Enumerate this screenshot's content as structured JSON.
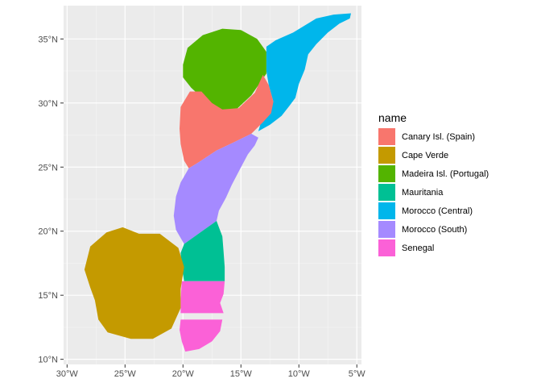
{
  "chart_data": {
    "type": "map",
    "legend": {
      "title": "name",
      "placement": "right",
      "entries": [
        {
          "key": "canary",
          "label": "Canary Isl. (Spain)",
          "color": "#F8766D"
        },
        {
          "key": "capeverde",
          "label": "Cape Verde",
          "color": "#C49A00"
        },
        {
          "key": "madeira",
          "label": "Madeira Isl. (Portugal)",
          "color": "#53B400"
        },
        {
          "key": "mauritania",
          "label": "Mauritania",
          "color": "#00C094"
        },
        {
          "key": "morocco_central",
          "label": "Morocco (Central)",
          "color": "#00B6EB"
        },
        {
          "key": "morocco_south",
          "label": "Morocco (South)",
          "color": "#A58AFF"
        },
        {
          "key": "senegal",
          "label": "Senegal",
          "color": "#FB61D7"
        }
      ]
    },
    "x_axis": {
      "range": [
        -30.3,
        -4.6
      ],
      "ticks": [
        -30,
        -25,
        -20,
        -15,
        -10,
        -5
      ],
      "tick_labels": [
        "30°W",
        "25°W",
        "20°W",
        "15°W",
        "10°W",
        "5°W"
      ]
    },
    "y_axis": {
      "range": [
        9.6,
        37.6
      ],
      "ticks": [
        10,
        15,
        20,
        25,
        30,
        35
      ],
      "tick_labels": [
        "10°N",
        "15°N",
        "20°N",
        "25°N",
        "30°N",
        "35°N"
      ]
    },
    "regions": [
      {
        "key": "madeira",
        "points": [
          [
            -20,
            33
          ],
          [
            -19.6,
            34.3
          ],
          [
            -18.3,
            35.3
          ],
          [
            -16.6,
            35.8
          ],
          [
            -15,
            35.7
          ],
          [
            -13.6,
            35
          ],
          [
            -12.8,
            34
          ],
          [
            -12.8,
            32.3
          ],
          [
            -14.1,
            30.6
          ],
          [
            -15.4,
            29.5
          ],
          [
            -17,
            29.4
          ],
          [
            -18.1,
            30.2
          ],
          [
            -19.3,
            31.2
          ],
          [
            -20,
            32
          ]
        ]
      },
      {
        "key": "morocco_central",
        "points": [
          [
            -12.8,
            34.4
          ],
          [
            -12,
            34.9
          ],
          [
            -10.5,
            35.5
          ],
          [
            -8.5,
            36.6
          ],
          [
            -7,
            36.9
          ],
          [
            -5.5,
            37
          ],
          [
            -5.6,
            36.6
          ],
          [
            -6.5,
            36.2
          ],
          [
            -7.5,
            35.5
          ],
          [
            -8.5,
            34.6
          ],
          [
            -9.2,
            33.8
          ],
          [
            -9.5,
            32.6
          ],
          [
            -10,
            31.5
          ],
          [
            -10.3,
            30.4
          ],
          [
            -10.8,
            29.8
          ],
          [
            -11.5,
            29
          ],
          [
            -12.5,
            28.3
          ],
          [
            -13.5,
            27.8
          ],
          [
            -13.2,
            28.7
          ],
          [
            -12.2,
            30.1
          ],
          [
            -12.6,
            31.4
          ],
          [
            -12.8,
            32.5
          ]
        ]
      },
      {
        "key": "canary",
        "points": [
          [
            -20.3,
            28
          ],
          [
            -20.2,
            29.7
          ],
          [
            -19.4,
            30.9
          ],
          [
            -18.4,
            30.9
          ],
          [
            -17.5,
            30
          ],
          [
            -16.6,
            29.5
          ],
          [
            -15.2,
            29.6
          ],
          [
            -13.8,
            30.8
          ],
          [
            -13.1,
            32.2
          ],
          [
            -12.6,
            31.4
          ],
          [
            -12.2,
            30.1
          ],
          [
            -12.4,
            29.2
          ],
          [
            -13.1,
            28.5
          ],
          [
            -14.1,
            27.6
          ],
          [
            -15.7,
            26.9
          ],
          [
            -17.1,
            26.3
          ],
          [
            -18.6,
            25.4
          ],
          [
            -19.5,
            24.9
          ],
          [
            -19.9,
            25.5
          ],
          [
            -20.2,
            26.8
          ]
        ]
      },
      {
        "key": "morocco_south",
        "points": [
          [
            -19.5,
            24.9
          ],
          [
            -18.6,
            25.4
          ],
          [
            -17.1,
            26.3
          ],
          [
            -15.7,
            26.9
          ],
          [
            -14.1,
            27.6
          ],
          [
            -13.5,
            27.3
          ],
          [
            -13.8,
            26.7
          ],
          [
            -14.4,
            26
          ],
          [
            -15.1,
            24.8
          ],
          [
            -15.8,
            23.6
          ],
          [
            -16.3,
            22.6
          ],
          [
            -16.9,
            21.6
          ],
          [
            -17.1,
            20.8
          ],
          [
            -19.9,
            19
          ],
          [
            -20.6,
            20.1
          ],
          [
            -20.8,
            21.2
          ],
          [
            -20.6,
            22.7
          ],
          [
            -20.2,
            23.8
          ]
        ]
      },
      {
        "key": "mauritania",
        "points": [
          [
            -19.9,
            19
          ],
          [
            -17.1,
            20.8
          ],
          [
            -16.9,
            20.3
          ],
          [
            -16.6,
            19.6
          ],
          [
            -16.5,
            18.4
          ],
          [
            -16.4,
            17.2
          ],
          [
            -16.4,
            16.1
          ],
          [
            -19.9,
            16.1
          ],
          [
            -20.1,
            17.2
          ],
          [
            -20.2,
            18.3
          ]
        ]
      },
      {
        "key": "senegal",
        "points": [
          [
            -20.1,
            16.1
          ],
          [
            -16.4,
            16.1
          ],
          [
            -16.5,
            15.1
          ],
          [
            -16.8,
            14.4
          ],
          [
            -16.5,
            13.6
          ],
          [
            -20.2,
            13.6
          ],
          [
            -20.2,
            14.6
          ]
        ]
      },
      {
        "key": "senegal",
        "points": [
          [
            -20.2,
            13.1
          ],
          [
            -16.6,
            13.1
          ],
          [
            -16.8,
            12.2
          ],
          [
            -17.5,
            11.4
          ],
          [
            -18.6,
            10.8
          ],
          [
            -19.8,
            10.6
          ],
          [
            -20.1,
            11.4
          ],
          [
            -20.3,
            12.3
          ]
        ]
      },
      {
        "key": "capeverde",
        "points": [
          [
            -28.5,
            17
          ],
          [
            -28,
            18.8
          ],
          [
            -26.6,
            19.9
          ],
          [
            -25.2,
            20.3
          ],
          [
            -23.8,
            19.8
          ],
          [
            -22,
            19.8
          ],
          [
            -20.4,
            18.7
          ],
          [
            -19.9,
            17.2
          ],
          [
            -20.2,
            15.5
          ],
          [
            -20.2,
            14
          ],
          [
            -21,
            12.4
          ],
          [
            -22.6,
            11.6
          ],
          [
            -24.5,
            11.6
          ],
          [
            -26.5,
            12.1
          ],
          [
            -27.3,
            13.1
          ],
          [
            -27.6,
            14.6
          ],
          [
            -28,
            15.6
          ]
        ]
      }
    ]
  }
}
